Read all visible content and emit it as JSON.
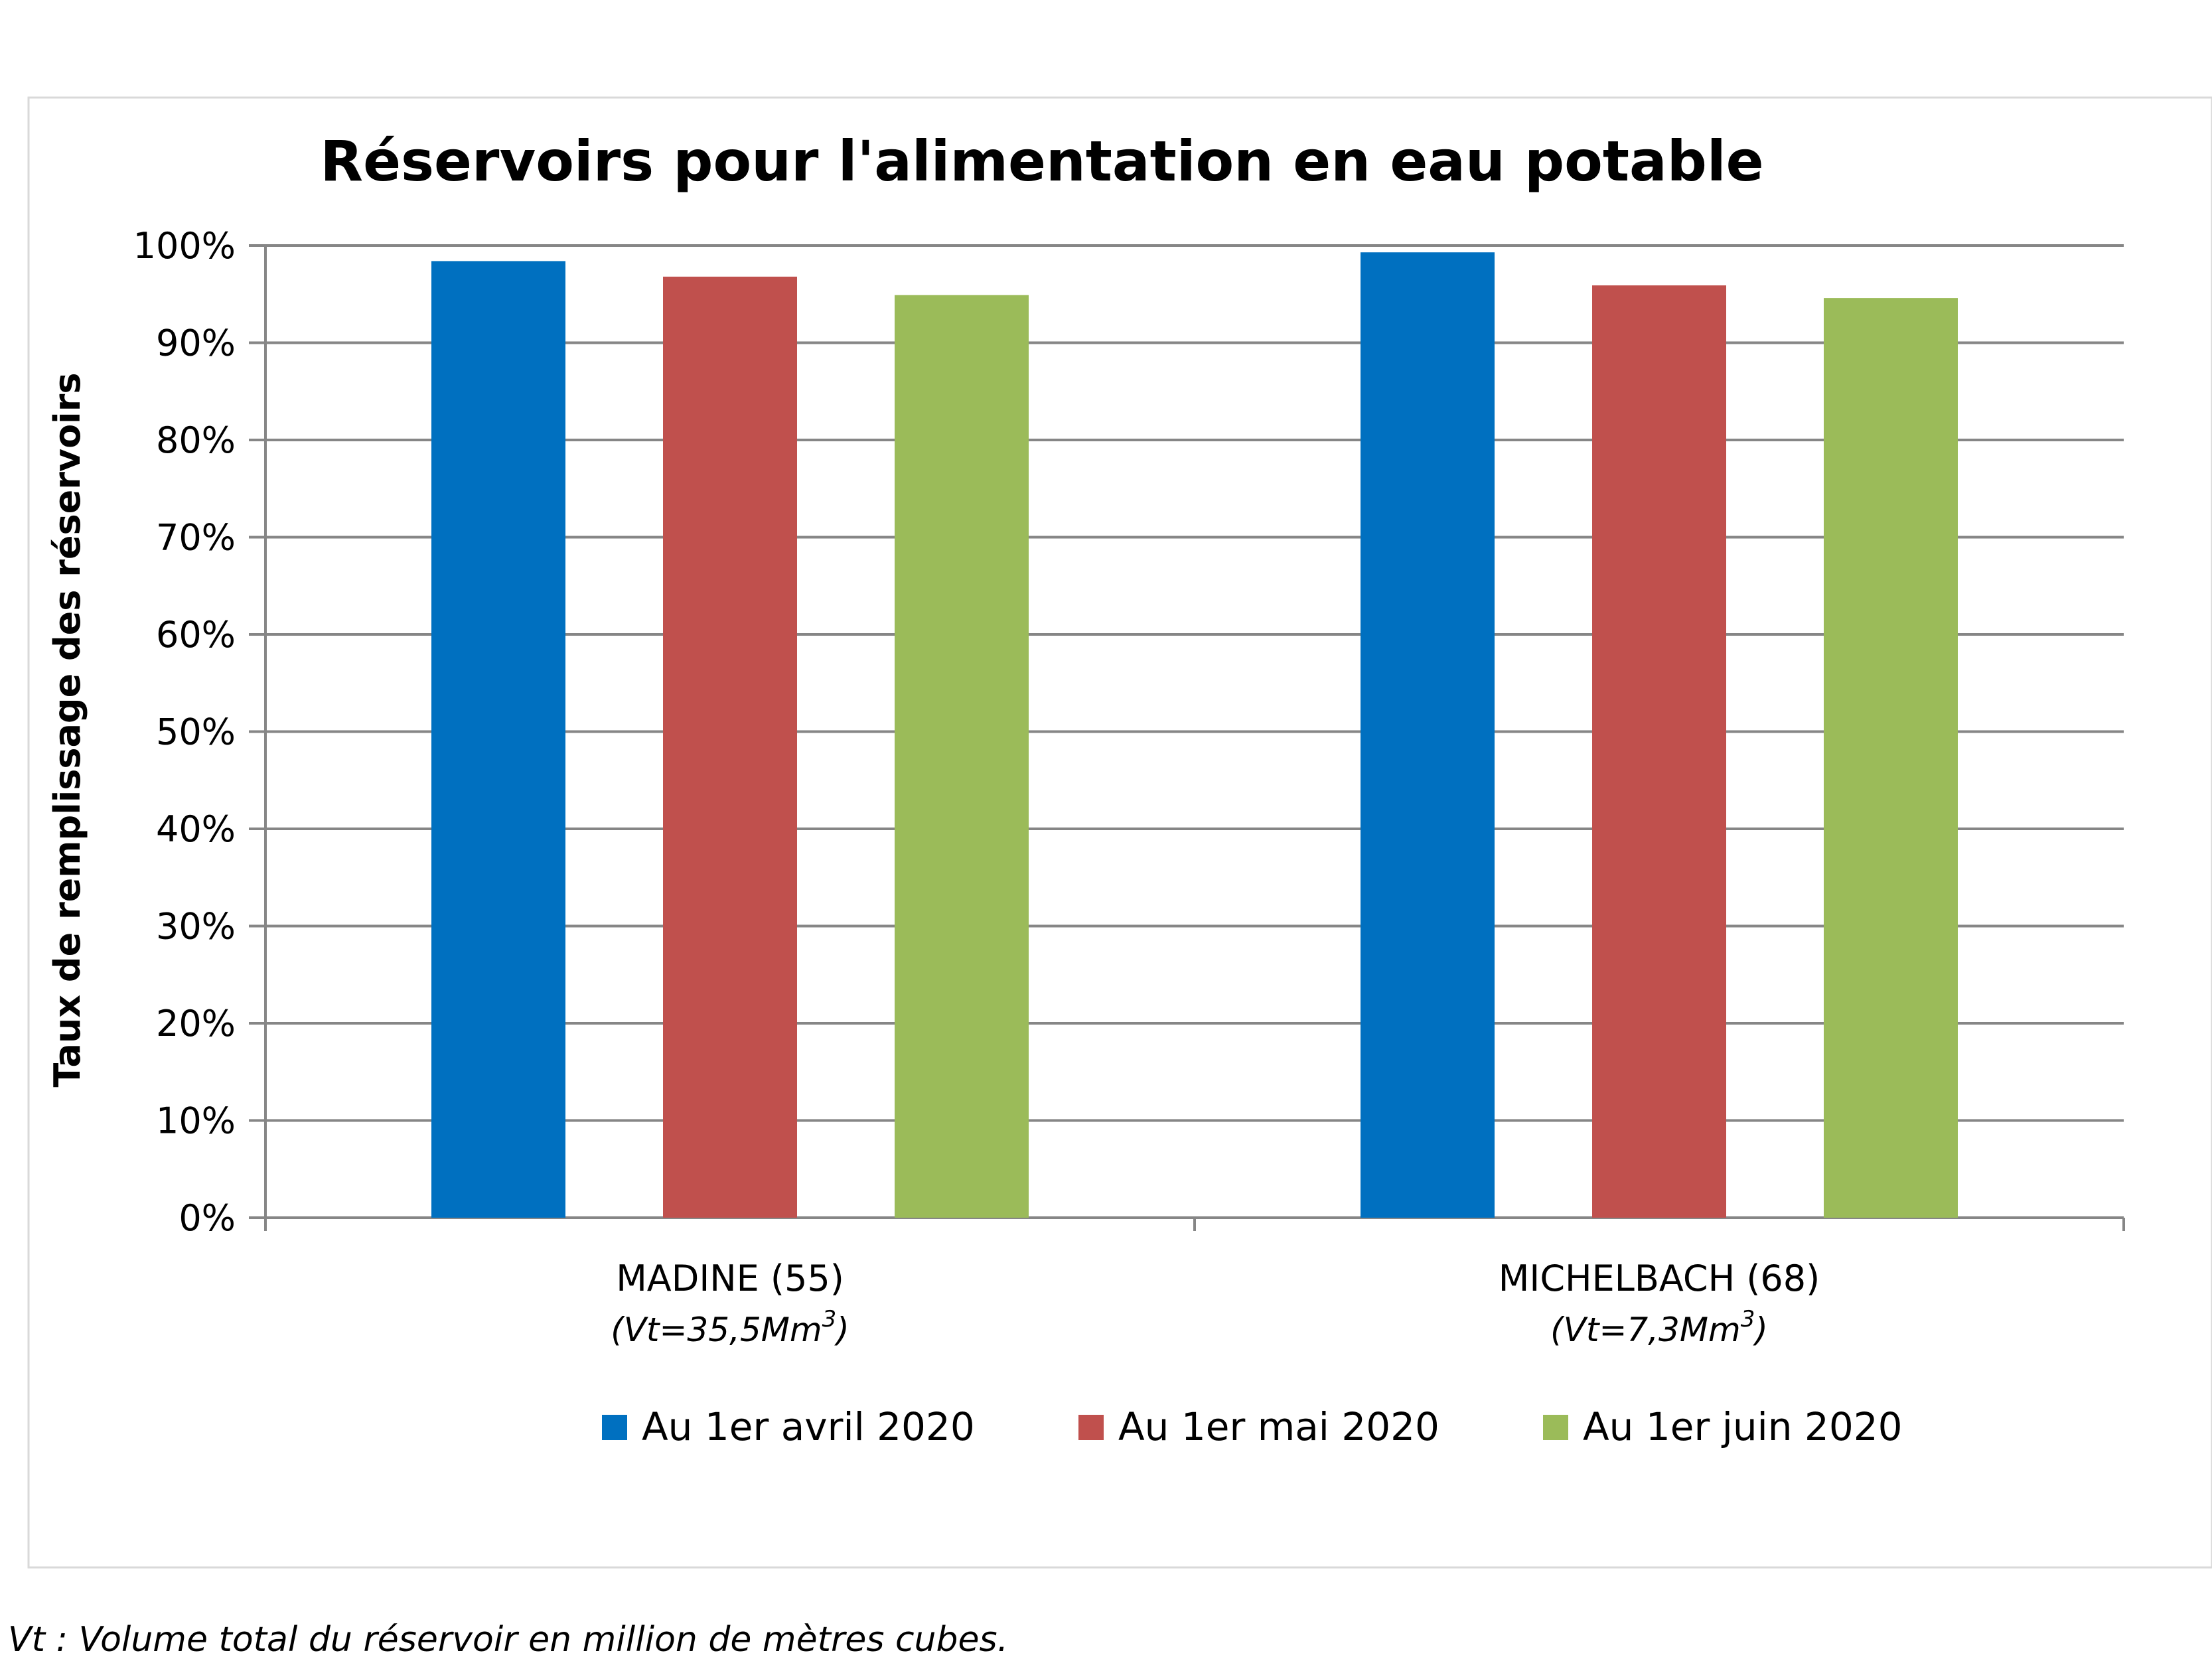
{
  "chart_data": {
    "type": "bar",
    "title": "Réservoirs pour l'alimentation en eau potable",
    "ylabel": "Taux de remplissage des réservoirs",
    "xlabel": "",
    "ylim": [
      0,
      1
    ],
    "y_tick_format": "percent",
    "y_ticks": [
      {
        "value": 0,
        "label": "0%"
      },
      {
        "value": 0.1,
        "label": "10%"
      },
      {
        "value": 0.2,
        "label": "20%"
      },
      {
        "value": 0.3,
        "label": "30%"
      },
      {
        "value": 0.4,
        "label": "40%"
      },
      {
        "value": 0.5,
        "label": "50%"
      },
      {
        "value": 0.6,
        "label": "60%"
      },
      {
        "value": 0.7,
        "label": "70%"
      },
      {
        "value": 0.8,
        "label": "80%"
      },
      {
        "value": 0.9,
        "label": "90%"
      },
      {
        "value": 1.0,
        "label": "100%"
      }
    ],
    "grid": true,
    "legend_position": "bottom",
    "categories": [
      {
        "label": "MADINE (55)",
        "sublabel_prefix": "(Vt=35,5Mm",
        "sublabel_sup": "3",
        "sublabel_suffix": ")"
      },
      {
        "label": "MICHELBACH (68)",
        "sublabel_prefix": "(Vt=7,3Mm",
        "sublabel_sup": "3",
        "sublabel_suffix": ")"
      }
    ],
    "series": [
      {
        "name": "Au 1er avril 2020",
        "color": "#0070C0",
        "values": [
          0.984,
          0.993
        ]
      },
      {
        "name": "Au 1er mai 2020",
        "color": "#C0504D",
        "values": [
          0.968,
          0.959
        ]
      },
      {
        "name": "Au 1er juin 2020",
        "color": "#9BBB59",
        "values": [
          0.949,
          0.946
        ]
      }
    ]
  },
  "footnote": "Vt : Volume total du réservoir en million de mètres cubes.",
  "colors": {
    "grid": "#868686",
    "axis": "#868686",
    "frame": "#D9D9D9"
  }
}
